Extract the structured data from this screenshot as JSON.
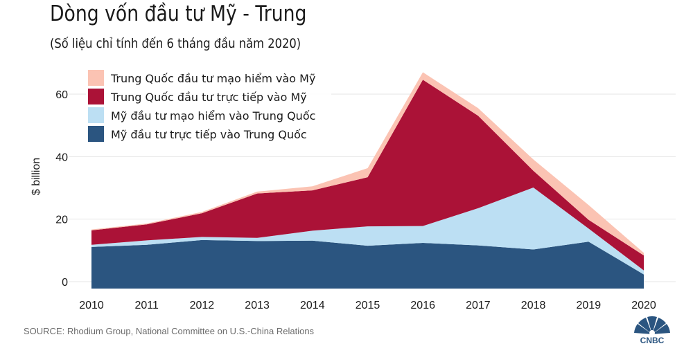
{
  "header": {
    "title": "Dòng vốn đầu tư Mỹ - Trung",
    "subtitle": "(Số liệu chỉ tính đến 6 tháng đầu năm 2020)"
  },
  "footer": {
    "source": "SOURCE: Rhodium Group, National Committee on U.S.-China Relations",
    "logo_text": "CNBC"
  },
  "chart_data": {
    "type": "area",
    "stacked": true,
    "title": "Dòng vốn đầu tư Mỹ - Trung",
    "subtitle": "(Số liệu chỉ tính đến 6 tháng đầu năm 2020)",
    "xlabel": "",
    "ylabel": "$ billion",
    "x": [
      "2010",
      "2011",
      "2012",
      "2013",
      "2014",
      "2015",
      "2016",
      "2017",
      "2018",
      "2019",
      "2020"
    ],
    "ylim": [
      -3,
      70
    ],
    "yticks": [
      0,
      20,
      40,
      60
    ],
    "grid": true,
    "legend_position": "top-left",
    "series": [
      {
        "name": "Mỹ đầu tư trực tiếp vào Trung Quốc",
        "color": "#2b5580",
        "values": [
          11.1,
          11.8,
          13.3,
          13.0,
          13.1,
          11.5,
          12.4,
          11.6,
          10.3,
          12.8,
          2.3
        ]
      },
      {
        "name": "Mỹ đầu tư mạo hiểm vào Trung Quốc",
        "color": "#bcdff3",
        "values": [
          0.7,
          1.4,
          1.0,
          1.0,
          3.2,
          6.2,
          5.4,
          11.9,
          19.8,
          4.2,
          1.3
        ]
      },
      {
        "name": "Trung Quốc đầu tư trực tiếp vào Mỹ",
        "color": "#ab1237",
        "values": [
          4.6,
          5.1,
          7.6,
          14.2,
          12.9,
          15.7,
          46.8,
          29.6,
          5.4,
          2.8,
          4.8
        ]
      },
      {
        "name": "Trung Quốc đầu tư mạo hiểm vào Mỹ",
        "color": "#fbc3b3",
        "values": [
          0.3,
          0.3,
          0.4,
          0.6,
          1.3,
          2.9,
          2.4,
          2.4,
          3.6,
          4.7,
          0.8
        ]
      }
    ],
    "legend_order": [
      3,
      2,
      1,
      0
    ]
  }
}
